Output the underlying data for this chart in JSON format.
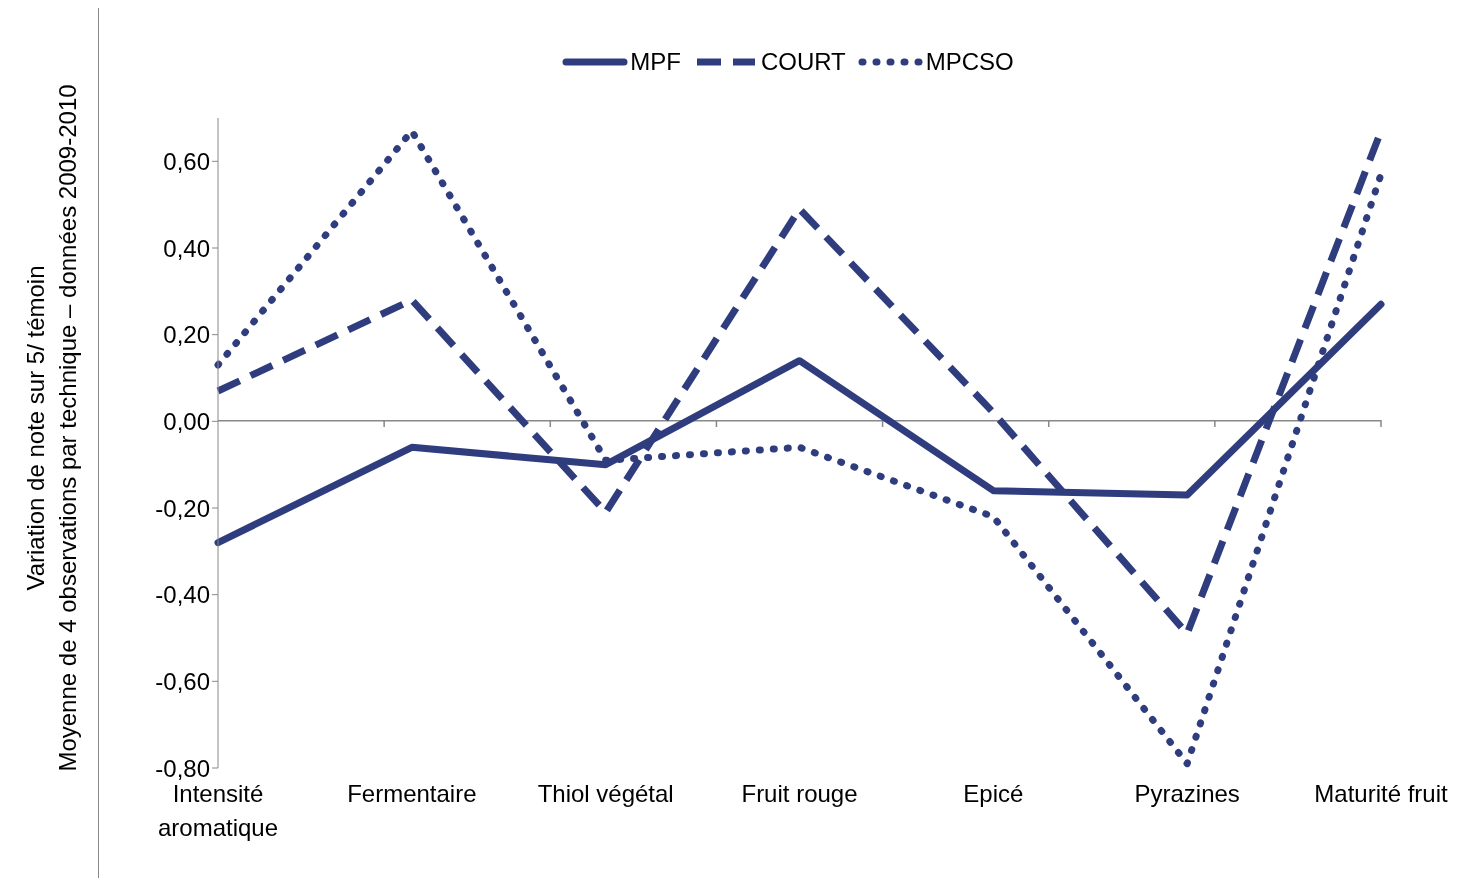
{
  "chart_data": {
    "type": "line",
    "ylabel": "Variation de note sur 5/ témoin\nMoyenne de 4 observations par technique – données 2009-2010",
    "categories": [
      "Intensité aromatique",
      "Fermentaire",
      "Thiol végétal",
      "Fruit rouge",
      "Epicé",
      "Pyrazines",
      "Maturité fruit"
    ],
    "series": [
      {
        "name": "MPF",
        "color": "#2f3d7e",
        "line_style": "solid",
        "values": [
          -0.28,
          -0.06,
          -0.1,
          0.14,
          -0.16,
          -0.17,
          0.27
        ]
      },
      {
        "name": "COURT",
        "color": "#2f3d7e",
        "line_style": "dashed",
        "values": [
          0.07,
          0.28,
          -0.21,
          0.49,
          0.02,
          -0.49,
          0.67
        ]
      },
      {
        "name": "MPCSO",
        "color": "#2f3d7e",
        "line_style": "dotted",
        "values": [
          0.13,
          0.67,
          -0.09,
          -0.06,
          -0.22,
          -0.79,
          0.57
        ]
      }
    ],
    "ylim": [
      -0.8,
      0.7
    ],
    "yticks": [
      {
        "value": -0.8,
        "label": "-0,80"
      },
      {
        "value": -0.6,
        "label": "-0,60"
      },
      {
        "value": -0.4,
        "label": "-0,40"
      },
      {
        "value": -0.2,
        "label": "-0,20"
      },
      {
        "value": 0,
        "label": "0,00"
      },
      {
        "value": 0.2,
        "label": "0,20"
      },
      {
        "value": 0.4,
        "label": "0,40"
      },
      {
        "value": 0.6,
        "label": "0,60"
      }
    ],
    "grid": false,
    "legend": "top",
    "marker": "none"
  }
}
